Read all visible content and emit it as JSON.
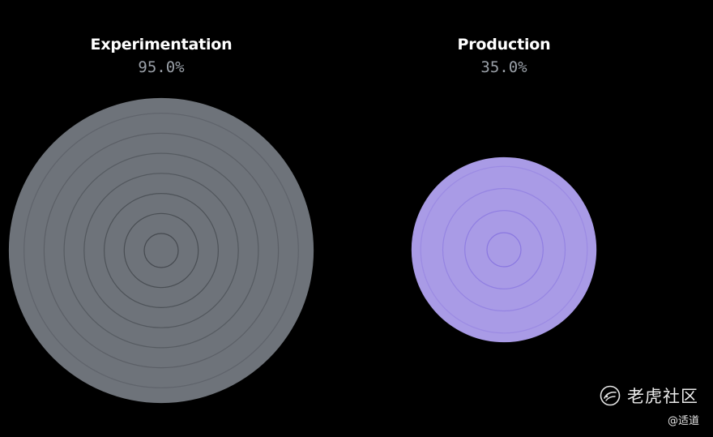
{
  "chart_data": [
    {
      "type": "radial",
      "title": "Experimentation",
      "value_label": "95.0%",
      "value": 95.0,
      "fill_color": "#6e737a",
      "ring_color": "#45494f",
      "ring_count": 7,
      "track": false
    },
    {
      "type": "radial",
      "title": "Production",
      "value_label": "35.0%",
      "value": 35.0,
      "fill_color": "#a99be6",
      "ring_color": "#8a77e0",
      "ring_count": 4,
      "track": true,
      "track_color": "#2e2a45"
    }
  ],
  "watermark": {
    "logo_icon": "tiger-logo-icon",
    "text": "老虎社区",
    "handle": "@适道"
  }
}
